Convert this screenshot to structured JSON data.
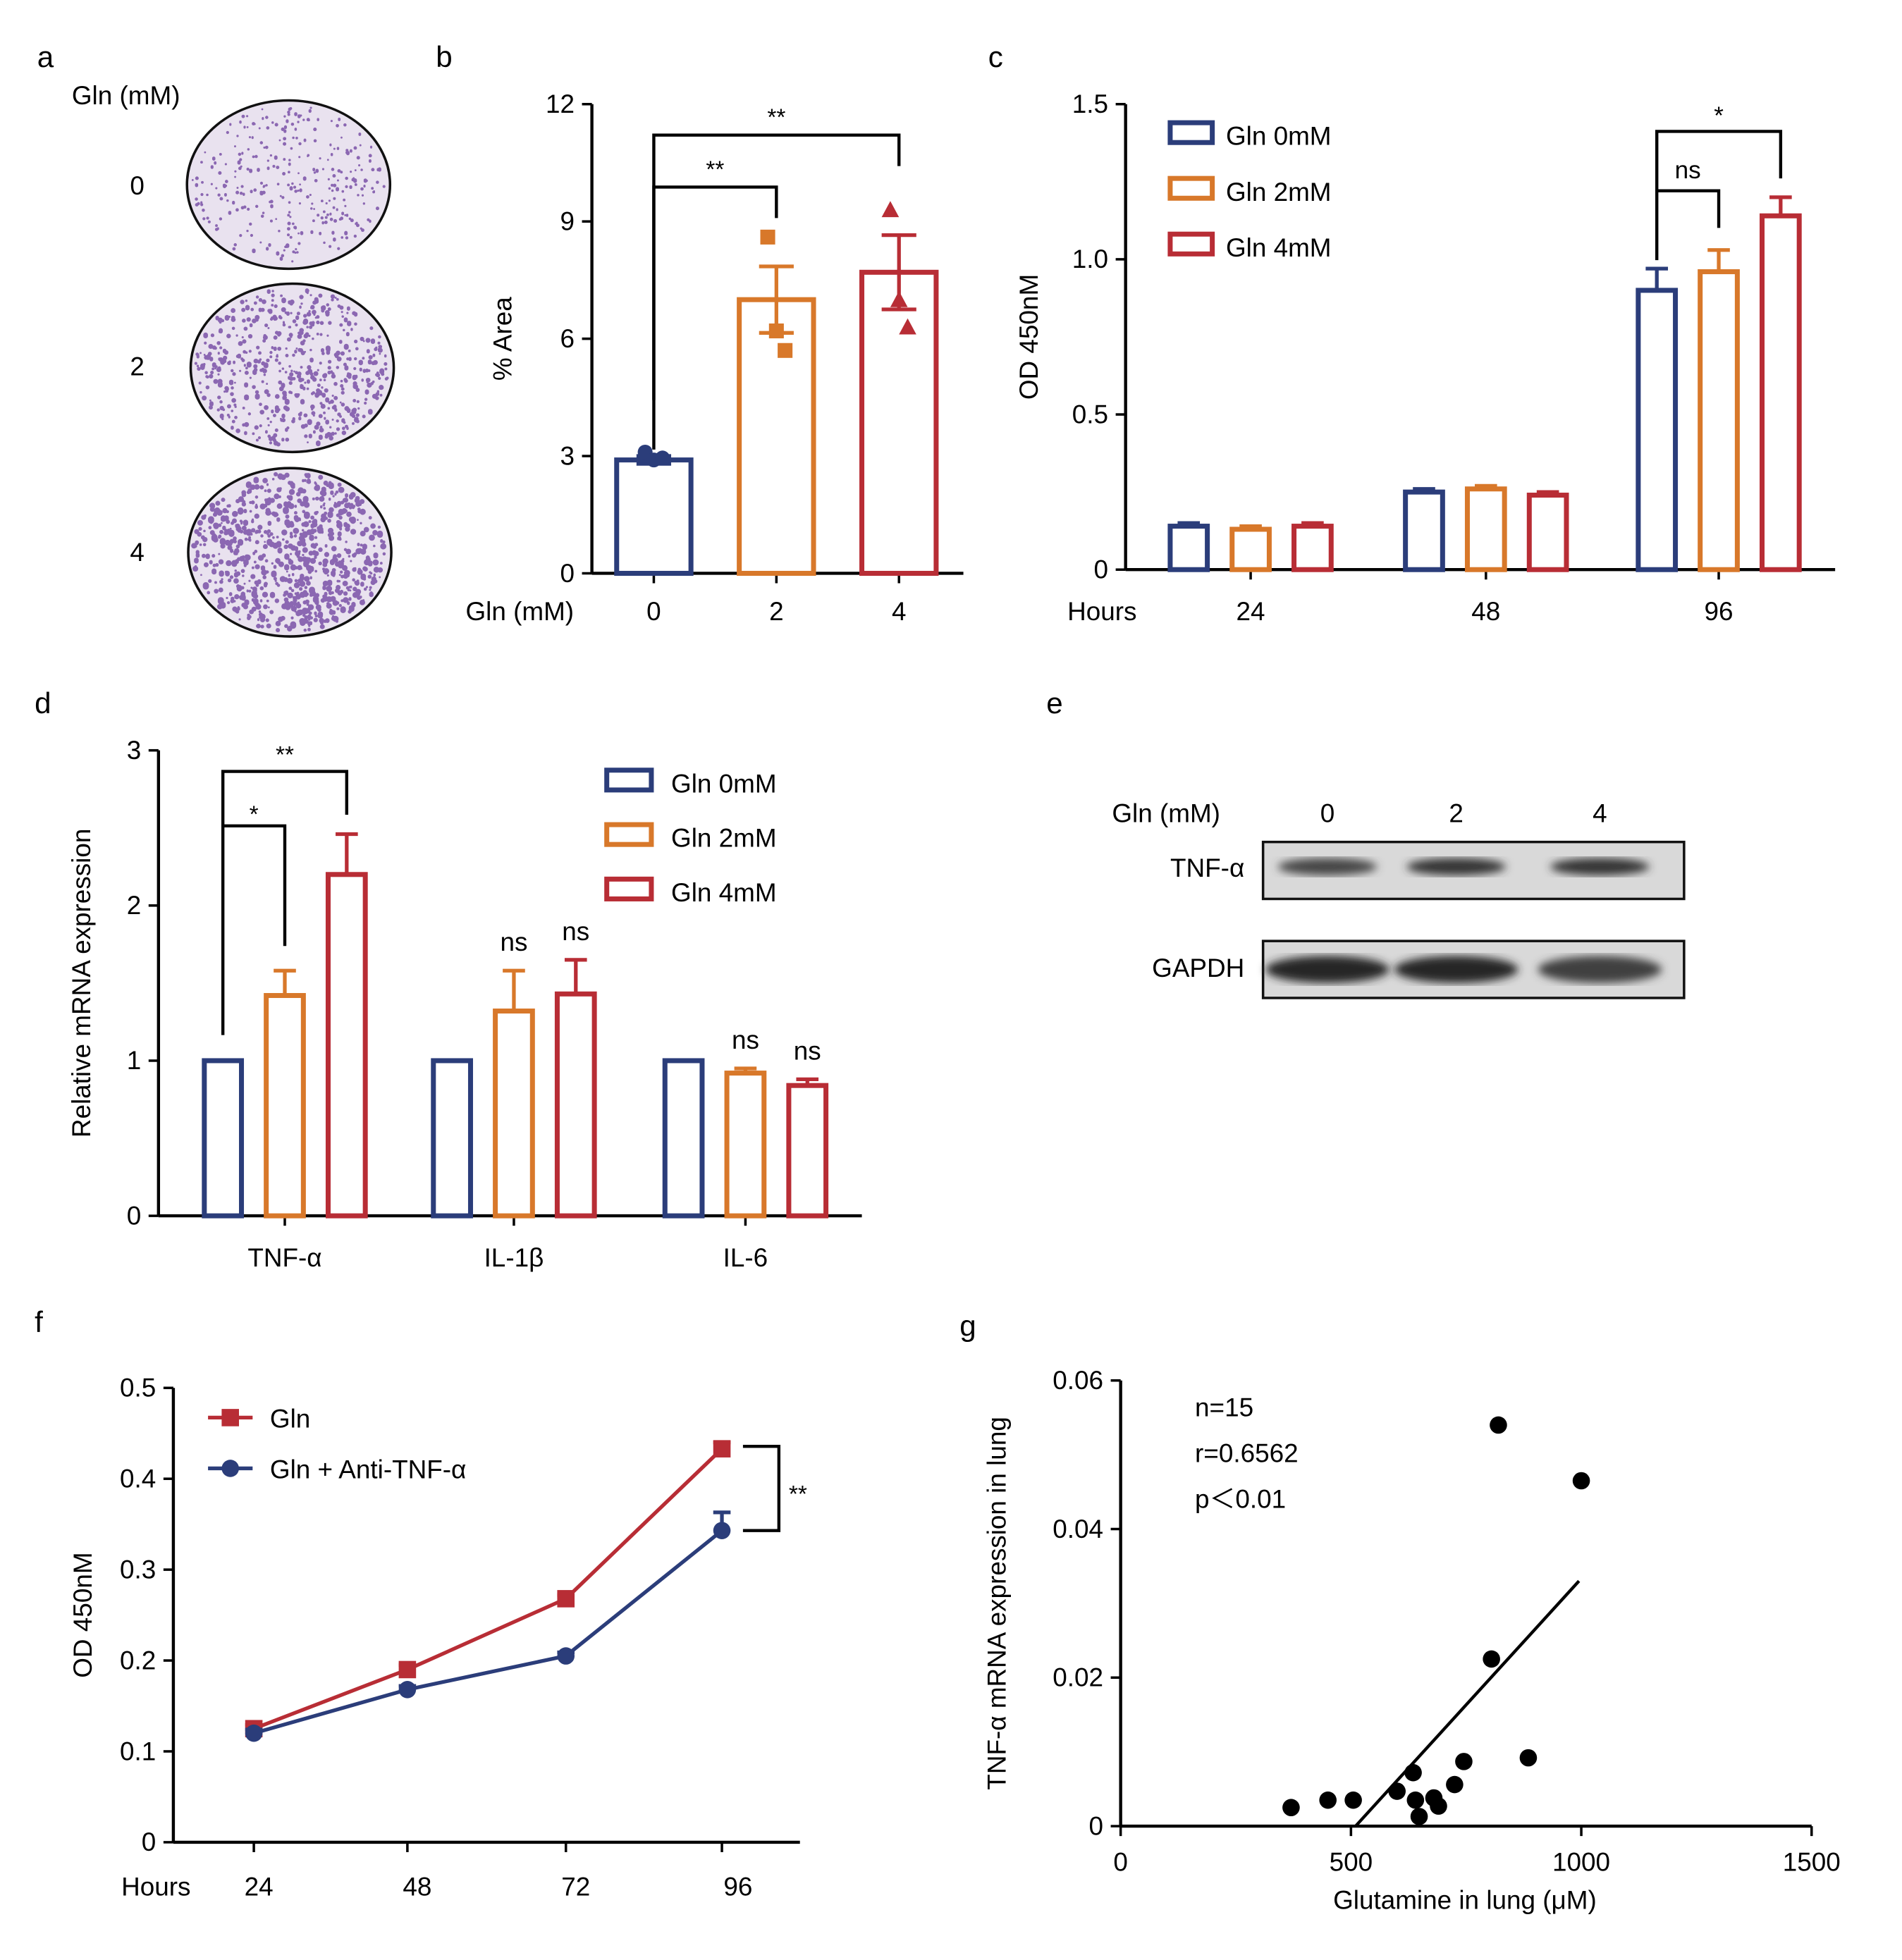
{
  "colors": {
    "gln0": "#2b3d7a",
    "gln2": "#d8782a",
    "gln4": "#b82d35",
    "anti": "#2b3d7a",
    "axis": "#000000"
  },
  "panel_labels": {
    "a": "a",
    "b": "b",
    "c": "c",
    "d": "d",
    "e": "e",
    "f": "f",
    "g": "g"
  },
  "panel_a": {
    "header": "Gln (mM)",
    "rows": [
      {
        "label": "0",
        "density": 0.35
      },
      {
        "label": "2",
        "density": 0.65
      },
      {
        "label": "4",
        "density": 0.9
      }
    ]
  },
  "panel_e": {
    "header": "Gln (mM)",
    "lanes": [
      "0",
      "2",
      "4"
    ],
    "bands": [
      {
        "label": "TNF-α",
        "intensity": [
          0.75,
          0.9,
          0.9
        ]
      },
      {
        "label": "GAPDH",
        "intensity": [
          1.0,
          1.0,
          0.8
        ]
      }
    ]
  },
  "chart_data": [
    {
      "panel": "b",
      "type": "bar",
      "title": "",
      "xlabel": "Gln (mM)",
      "ylabel": "% Area",
      "ylim": [
        0,
        12
      ],
      "yticks": [
        "0",
        "3",
        "6",
        "9",
        "12"
      ],
      "categories": [
        "0",
        "2",
        "4"
      ],
      "values": [
        2.9,
        7.0,
        7.7
      ],
      "errors": [
        0.1,
        0.85,
        0.95
      ],
      "points": [
        [
          3.1,
          2.9,
          2.95
        ],
        [
          8.6,
          6.2,
          5.7
        ],
        [
          9.3,
          7.0,
          6.3
        ]
      ],
      "markers": [
        "circle",
        "square",
        "triangle"
      ],
      "annotations": [
        {
          "from": "0",
          "to": "2",
          "text": "**"
        },
        {
          "from": "0",
          "to": "4",
          "text": "**"
        }
      ]
    },
    {
      "panel": "c",
      "type": "bar",
      "title": "",
      "xlabel": "Hours",
      "ylabel": "OD 450nM",
      "ylim": [
        0,
        1.5
      ],
      "yticks": [
        "0",
        "0.5",
        "1.0",
        "1.5"
      ],
      "categories": [
        "24",
        "48",
        "96"
      ],
      "series": [
        {
          "name": "Gln 0mM",
          "values": [
            0.14,
            0.25,
            0.9
          ],
          "errors": [
            0.01,
            0.01,
            0.07
          ]
        },
        {
          "name": "Gln 2mM",
          "values": [
            0.13,
            0.26,
            0.96
          ],
          "errors": [
            0.01,
            0.01,
            0.07
          ]
        },
        {
          "name": "Gln 4mM",
          "values": [
            0.14,
            0.24,
            1.14
          ],
          "errors": [
            0.01,
            0.01,
            0.06
          ]
        }
      ],
      "legend": "top-left",
      "annotations": [
        {
          "category": "96",
          "from": "Gln 0mM",
          "to": "Gln 2mM",
          "text": "ns"
        },
        {
          "category": "96",
          "from": "Gln 0mM",
          "to": "Gln 4mM",
          "text": "*"
        }
      ]
    },
    {
      "panel": "d",
      "type": "bar",
      "title": "",
      "xlabel": "",
      "ylabel": "Relative mRNA expression",
      "ylim": [
        0,
        3
      ],
      "yticks": [
        "0",
        "1",
        "2",
        "3"
      ],
      "categories": [
        "TNF-α",
        "IL-1β",
        "IL-6"
      ],
      "series": [
        {
          "name": "Gln 0mM",
          "values": [
            1.0,
            1.0,
            1.0
          ],
          "errors": [
            0,
            0,
            0
          ]
        },
        {
          "name": "Gln 2mM",
          "values": [
            1.42,
            1.32,
            0.92
          ],
          "errors": [
            0.16,
            0.26,
            0.03
          ]
        },
        {
          "name": "Gln 4mM",
          "values": [
            2.2,
            1.43,
            0.84
          ],
          "errors": [
            0.26,
            0.22,
            0.04
          ]
        }
      ],
      "legend": "top-right",
      "annotations": [
        {
          "category": "TNF-α",
          "from": "Gln 0mM",
          "to": "Gln 2mM",
          "text": "*"
        },
        {
          "category": "TNF-α",
          "from": "Gln 0mM",
          "to": "Gln 4mM",
          "text": "**"
        },
        {
          "category": "IL-1β",
          "series": "Gln 2mM",
          "text": "ns"
        },
        {
          "category": "IL-1β",
          "series": "Gln 4mM",
          "text": "ns"
        },
        {
          "category": "IL-6",
          "series": "Gln 2mM",
          "text": "ns"
        },
        {
          "category": "IL-6",
          "series": "Gln 4mM",
          "text": "ns"
        }
      ]
    },
    {
      "panel": "f",
      "type": "line",
      "title": "",
      "xlabel": "Hours",
      "ylabel": "OD 450nM",
      "ylim": [
        0,
        0.5
      ],
      "yticks": [
        "0",
        "0.1",
        "0.2",
        "0.3",
        "0.4",
        "0.5"
      ],
      "x": [
        "24",
        "48",
        "72",
        "96"
      ],
      "series": [
        {
          "name": "Gln",
          "marker": "square",
          "values": [
            0.125,
            0.19,
            0.268,
            0.433
          ],
          "errors": [
            0.004,
            0.005,
            0.004,
            0.007
          ]
        },
        {
          "name": "Gln + Anti-TNF-α",
          "marker": "circle",
          "values": [
            0.12,
            0.168,
            0.205,
            0.343
          ],
          "errors": [
            0.004,
            0.004,
            0.004,
            0.02
          ]
        }
      ],
      "legend": "top-left",
      "annotations": [
        {
          "x": "96",
          "text": "**"
        }
      ]
    },
    {
      "panel": "g",
      "type": "scatter",
      "title": "",
      "xlabel": "Glutamine in lung (μM)",
      "ylabel": "TNF-α mRNA expression in lung",
      "xlim": [
        0,
        1500
      ],
      "ylim": [
        0,
        0.06
      ],
      "xticks": [
        "0",
        "500",
        "1000",
        "1500"
      ],
      "yticks": [
        "0",
        "0.02",
        "0.04",
        "0.06"
      ],
      "points": [
        [
          370,
          0.0025
        ],
        [
          450,
          0.0035
        ],
        [
          505,
          0.0035
        ],
        [
          600,
          0.0047
        ],
        [
          635,
          0.0072
        ],
        [
          640,
          0.0035
        ],
        [
          648,
          0.0013
        ],
        [
          680,
          0.0038
        ],
        [
          690,
          0.0027
        ],
        [
          725,
          0.0056
        ],
        [
          745,
          0.0087
        ],
        [
          805,
          0.0225
        ],
        [
          820,
          0.054
        ],
        [
          885,
          0.0092
        ],
        [
          1000,
          0.0465
        ]
      ],
      "fit_line": {
        "x": [
          510,
          995
        ],
        "y": [
          0.0,
          0.033
        ]
      },
      "stats": [
        "n=15",
        "r=0.6562",
        "p＜0.01"
      ]
    }
  ]
}
